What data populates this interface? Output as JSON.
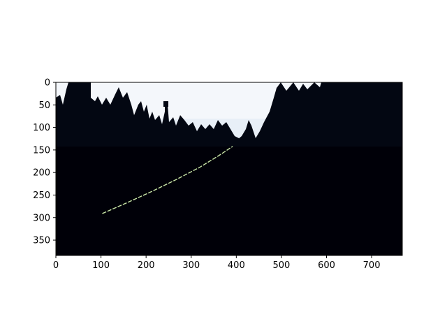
{
  "figure": {
    "type": "image-with-axes",
    "description_colors": {
      "sky": "#f4f7fb",
      "sky_haze": "#dfe9f5",
      "foliage": "#030712",
      "ground": "#000008",
      "lane_line": "#c9e6a8"
    }
  },
  "axes": {
    "x": {
      "range": [
        0,
        768
      ],
      "ticks": [
        0,
        100,
        200,
        300,
        400,
        500,
        600,
        700
      ],
      "tick_labels": [
        "0",
        "100",
        "200",
        "300",
        "400",
        "500",
        "600",
        "700"
      ]
    },
    "y": {
      "range": [
        0,
        384
      ],
      "inverted": true,
      "ticks": [
        0,
        50,
        100,
        150,
        200,
        250,
        300,
        350
      ],
      "tick_labels": [
        "0",
        "50",
        "100",
        "150",
        "200",
        "250",
        "300",
        "350"
      ]
    }
  },
  "lane_marking": {
    "color": "#c9e6a8",
    "points": [
      [
        103,
        291
      ],
      [
        160,
        266
      ],
      [
        215,
        241
      ],
      [
        268,
        215
      ],
      [
        318,
        189
      ],
      [
        362,
        162
      ],
      [
        392,
        142
      ]
    ]
  }
}
